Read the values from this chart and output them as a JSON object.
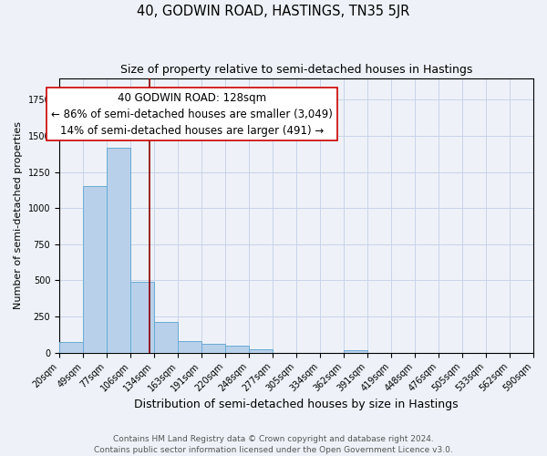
{
  "title": "40, GODWIN ROAD, HASTINGS, TN35 5JR",
  "subtitle": "Size of property relative to semi-detached houses in Hastings",
  "xlabel": "Distribution of semi-detached houses by size in Hastings",
  "ylabel": "Number of semi-detached properties",
  "bar_edges": [
    20,
    49,
    77,
    106,
    134,
    163,
    191,
    220,
    248,
    277,
    305,
    334,
    362,
    391,
    419,
    448,
    476,
    505,
    533,
    562,
    590
  ],
  "bar_heights": [
    75,
    1150,
    1420,
    490,
    215,
    80,
    63,
    50,
    25,
    0,
    0,
    0,
    15,
    0,
    0,
    0,
    0,
    0,
    0,
    0
  ],
  "bar_color": "#b8d0ea",
  "bar_edge_color": "#6aaad4",
  "grid_color": "#c8d4e8",
  "bg_color": "#eef2f8",
  "vline_x": 128,
  "vline_color": "#8b0000",
  "annotation_title": "40 GODWIN ROAD: 128sqm",
  "annotation_line1": "← 86% of semi-detached houses are smaller (3,049)",
  "annotation_line2": "14% of semi-detached houses are larger (491) →",
  "annotation_box_facecolor": "#ffffff",
  "annotation_box_edgecolor": "#cc0000",
  "ylim": [
    0,
    1900
  ],
  "xlim_left": 20,
  "xlim_right": 590,
  "tick_labels": [
    "20sqm",
    "49sqm",
    "77sqm",
    "106sqm",
    "134sqm",
    "163sqm",
    "191sqm",
    "220sqm",
    "248sqm",
    "277sqm",
    "305sqm",
    "334sqm",
    "362sqm",
    "391sqm",
    "419sqm",
    "448sqm",
    "476sqm",
    "505sqm",
    "533sqm",
    "562sqm",
    "590sqm"
  ],
  "footer_line1": "Contains HM Land Registry data © Crown copyright and database right 2024.",
  "footer_line2": "Contains public sector information licensed under the Open Government Licence v3.0.",
  "title_fontsize": 10.5,
  "subtitle_fontsize": 9,
  "ylabel_fontsize": 8,
  "xlabel_fontsize": 9,
  "tick_fontsize": 7,
  "annotation_title_fontsize": 9,
  "annotation_body_fontsize": 8.5,
  "footer_fontsize": 6.5
}
